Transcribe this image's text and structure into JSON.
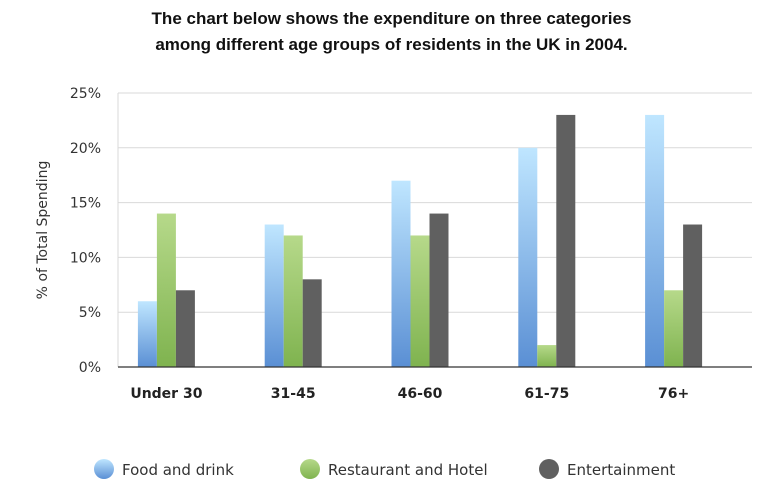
{
  "chart_data": {
    "type": "bar",
    "title": "The chart below shows the expenditure on three categories among different age groups of residents in the UK in 2004.",
    "title_lines": [
      "The chart below shows the expenditure on three categories",
      "among different age groups of residents in the UK in 2004."
    ],
    "xlabel": "",
    "ylabel": "% of Total Spending",
    "ylim": [
      0,
      25
    ],
    "yticks": [
      "0%",
      "5%",
      "10%",
      "15%",
      "20%",
      "25%"
    ],
    "ytick_values": [
      0,
      5,
      10,
      15,
      20,
      25
    ],
    "categories": [
      "Under 30",
      "31-45",
      "46-60",
      "61-75",
      "76+"
    ],
    "series": [
      {
        "name": "Food and drink",
        "values": [
          6,
          13,
          17,
          20,
          23
        ],
        "color_top": "#bfe6ff",
        "color_bottom": "#5a8fd4"
      },
      {
        "name": "Restaurant and Hotel",
        "values": [
          14,
          12,
          12,
          2,
          7
        ],
        "color_top": "#b6d98a",
        "color_bottom": "#7fb34f"
      },
      {
        "name": "Entertainment",
        "values": [
          7,
          8,
          14,
          23,
          13
        ],
        "color_top": "#606060",
        "color_bottom": "#606060"
      }
    ],
    "grid": true,
    "legend_position": "bottom"
  }
}
